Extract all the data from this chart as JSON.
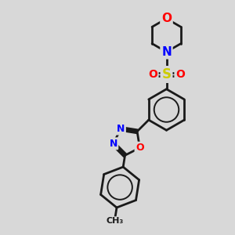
{
  "bg_color": "#d8d8d8",
  "bond_color": "#1a1a1a",
  "bond_width": 2.0,
  "N_color": "#0000ff",
  "O_color": "#ff0000",
  "S_color": "#cccc00",
  "font_size": 10,
  "figsize": [
    3.0,
    3.0
  ],
  "dpi": 100,
  "xlim": [
    0,
    12
  ],
  "ylim": [
    0,
    12
  ]
}
